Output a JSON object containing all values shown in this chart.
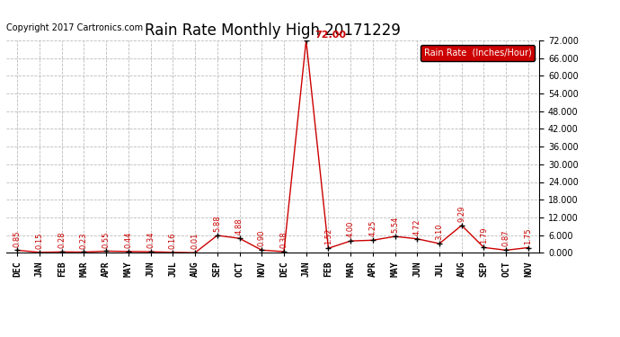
{
  "title": "Rain Rate Monthly High 20171229",
  "copyright": "Copyright 2017 Cartronics.com",
  "legend_label": "Rain Rate  (Inches/Hour)",
  "months": [
    "DEC",
    "JAN",
    "FEB",
    "MAR",
    "APR",
    "MAY",
    "JUN",
    "JUL",
    "AUG",
    "SEP",
    "OCT",
    "NOV",
    "DEC",
    "JAN",
    "FEB",
    "MAR",
    "APR",
    "MAY",
    "JUN",
    "JUL",
    "AUG",
    "SEP",
    "OCT",
    "NOV"
  ],
  "values": [
    0.85,
    0.15,
    0.28,
    0.23,
    0.55,
    0.44,
    0.34,
    0.16,
    0.01,
    5.88,
    4.88,
    0.9,
    0.38,
    72.0,
    1.52,
    4.0,
    4.25,
    5.54,
    4.72,
    3.1,
    9.29,
    1.79,
    0.87,
    1.75
  ],
  "ylim": [
    0.0,
    72.0
  ],
  "yticks": [
    0,
    6,
    12,
    18,
    24,
    30,
    36,
    42,
    48,
    54,
    60,
    66,
    72
  ],
  "ytick_labels": [
    "0.000",
    "6.000",
    "12.000",
    "18.000",
    "24.000",
    "30.000",
    "36.000",
    "42.000",
    "48.000",
    "54.000",
    "60.000",
    "66.000",
    "72.000"
  ],
  "line_color": "#cc0000",
  "marker_color": "#000000",
  "label_color": "#cc0000",
  "peak_label_color": "#cc0000",
  "background_color": "#ffffff",
  "grid_color": "#bbbbbb",
  "title_fontsize": 12,
  "copyright_fontsize": 7,
  "label_fontsize": 6,
  "legend_bg": "#cc0000",
  "legend_text_color": "#ffffff",
  "peak_index": 13
}
